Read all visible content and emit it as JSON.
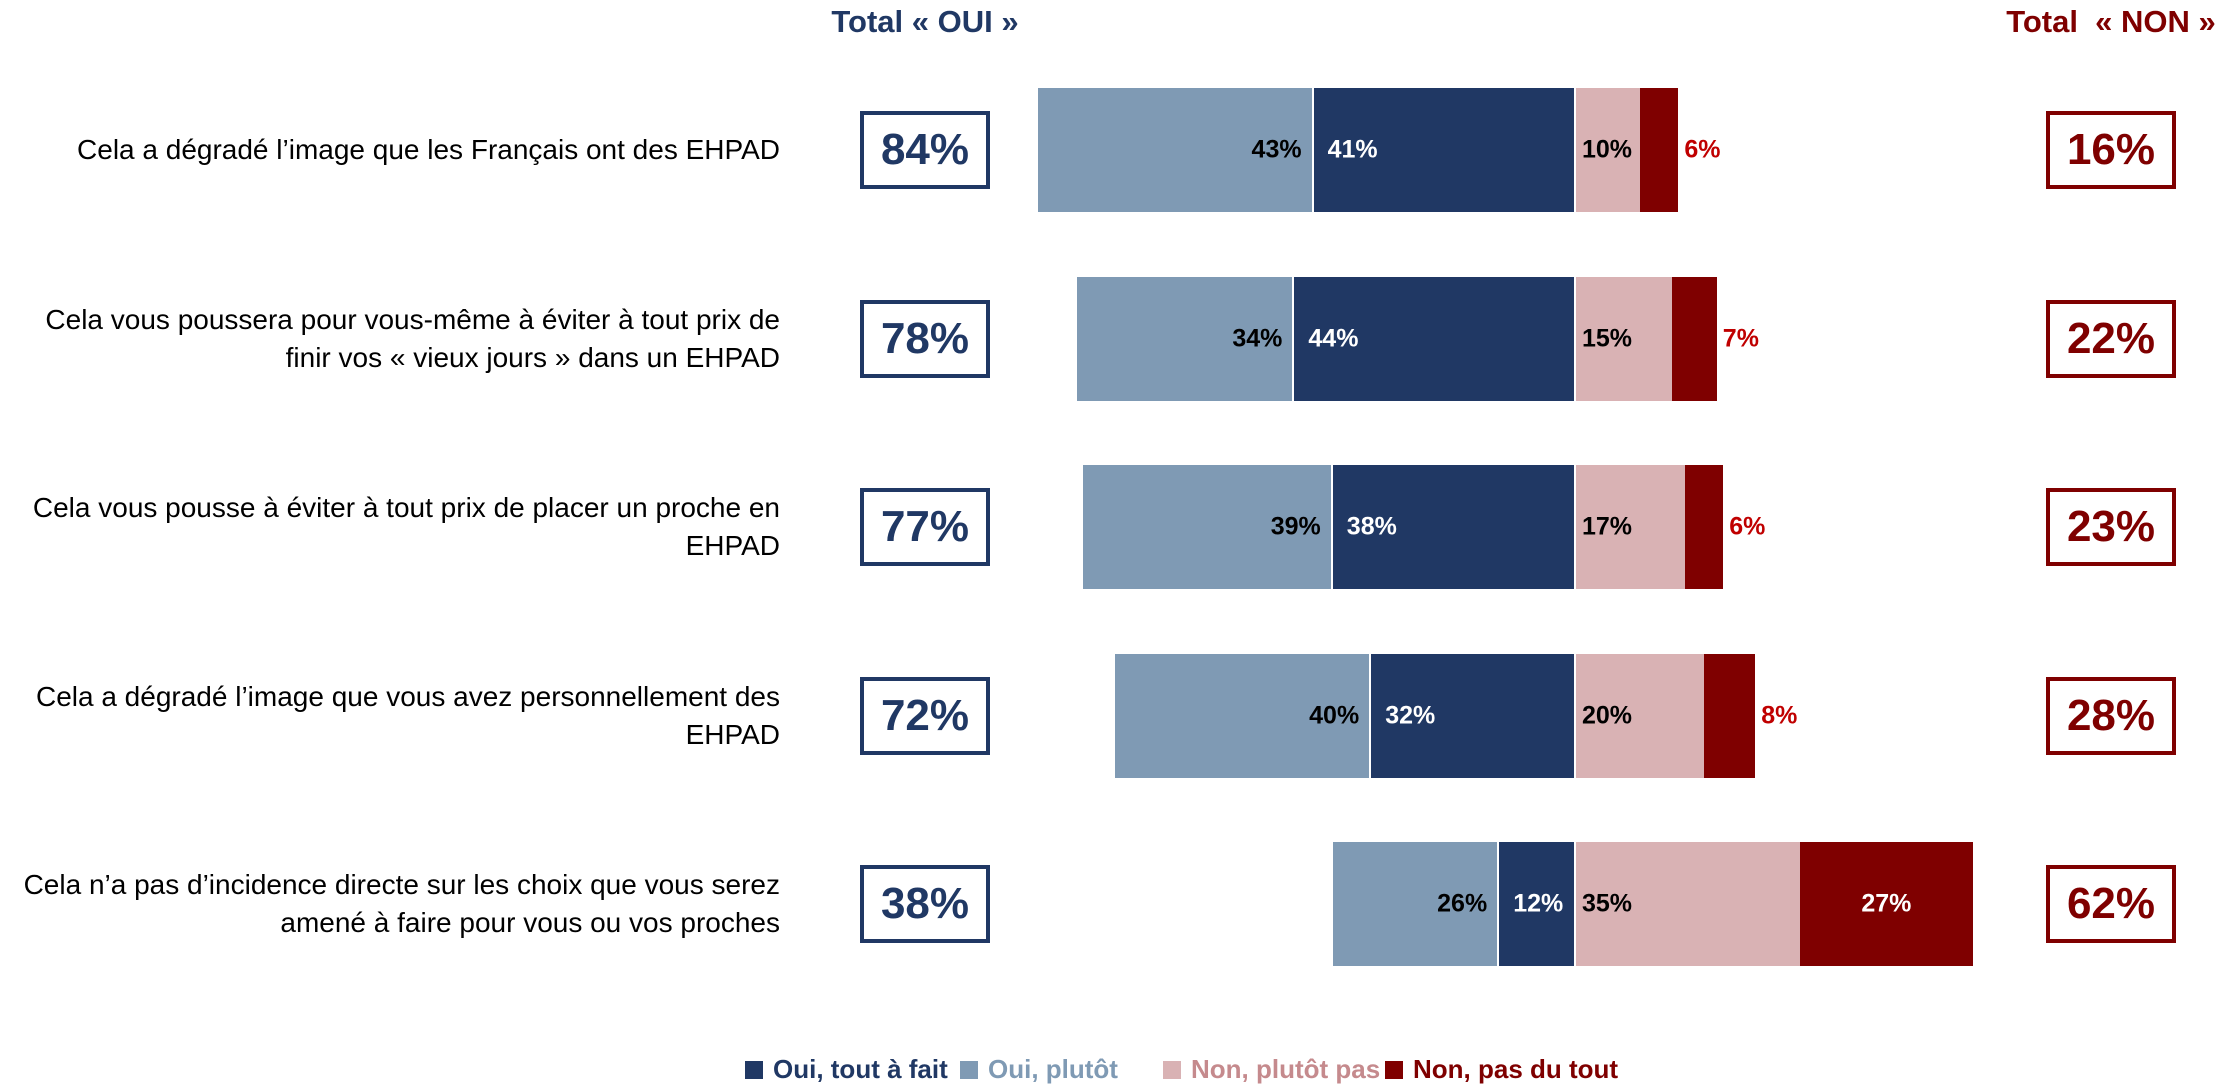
{
  "chart_data": {
    "type": "diverging-stacked-bar",
    "categories": [
      "Cela a dégradé l’image que les Français ont des EHPAD",
      "Cela vous poussera pour vous-même à éviter à tout prix de finir vos « vieux jours » dans un EHPAD",
      "Cela vous pousse à éviter à tout prix de placer un proche en EHPAD",
      "Cela a dégradé l’image que vous avez personnellement des EHPAD",
      "Cela n’a pas d’incidence directe sur les choix que vous serez amené à faire pour vous ou vos proches"
    ],
    "series": [
      {
        "name": "Oui, tout à fait",
        "color": "#203864",
        "side": "left",
        "values": [
          41,
          44,
          38,
          32,
          12
        ],
        "value_labels": [
          "41%",
          "44%",
          "38%",
          "32%",
          "12%"
        ]
      },
      {
        "name": "Oui, plutôt",
        "color": "#7f9ab4",
        "side": "left",
        "values": [
          43,
          34,
          39,
          40,
          26
        ],
        "value_labels": [
          "43%",
          "34%",
          "39%",
          "40%",
          "26%"
        ]
      },
      {
        "name": "Non, plutôt pas",
        "color": "#d9b2b4",
        "side": "right",
        "values": [
          10,
          15,
          17,
          20,
          35
        ],
        "value_labels": [
          "10%",
          "15%",
          "17%",
          "20%",
          "35%"
        ]
      },
      {
        "name": "Non, pas du tout",
        "color": "#7f0000",
        "side": "right",
        "values": [
          6,
          7,
          6,
          8,
          27
        ],
        "value_labels": [
          "6%",
          "7%",
          "6%",
          "8%",
          "27%"
        ]
      }
    ],
    "total_oui": {
      "title": "Total « OUI »",
      "color": "#203864",
      "values": [
        84,
        78,
        77,
        72,
        38
      ],
      "value_labels": [
        "84%",
        "78%",
        "77%",
        "72%",
        "38%"
      ]
    },
    "total_non": {
      "title": "Total  « NON »",
      "color": "#7f0000",
      "values": [
        16,
        22,
        23,
        28,
        62
      ],
      "value_labels": [
        "16%",
        "22%",
        "23%",
        "28%",
        "62%"
      ]
    }
  }
}
